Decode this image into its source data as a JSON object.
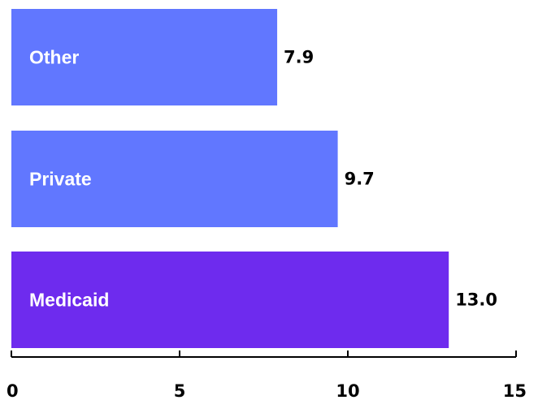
{
  "chart_data": {
    "type": "bar",
    "orientation": "horizontal",
    "categories": [
      "Other",
      "Private",
      "Medicaid"
    ],
    "values": [
      7.9,
      9.7,
      13.0
    ],
    "value_labels": [
      "7.9",
      "9.7",
      "13.0"
    ],
    "xlim": [
      0,
      15
    ],
    "xticks": [
      0,
      5,
      10,
      15
    ],
    "xtick_labels": [
      "0",
      "5",
      "10",
      "15"
    ],
    "bar_colors": [
      "#6177FF",
      "#6177FF",
      "#6E2BEE"
    ],
    "grid": false,
    "legend": "none"
  }
}
